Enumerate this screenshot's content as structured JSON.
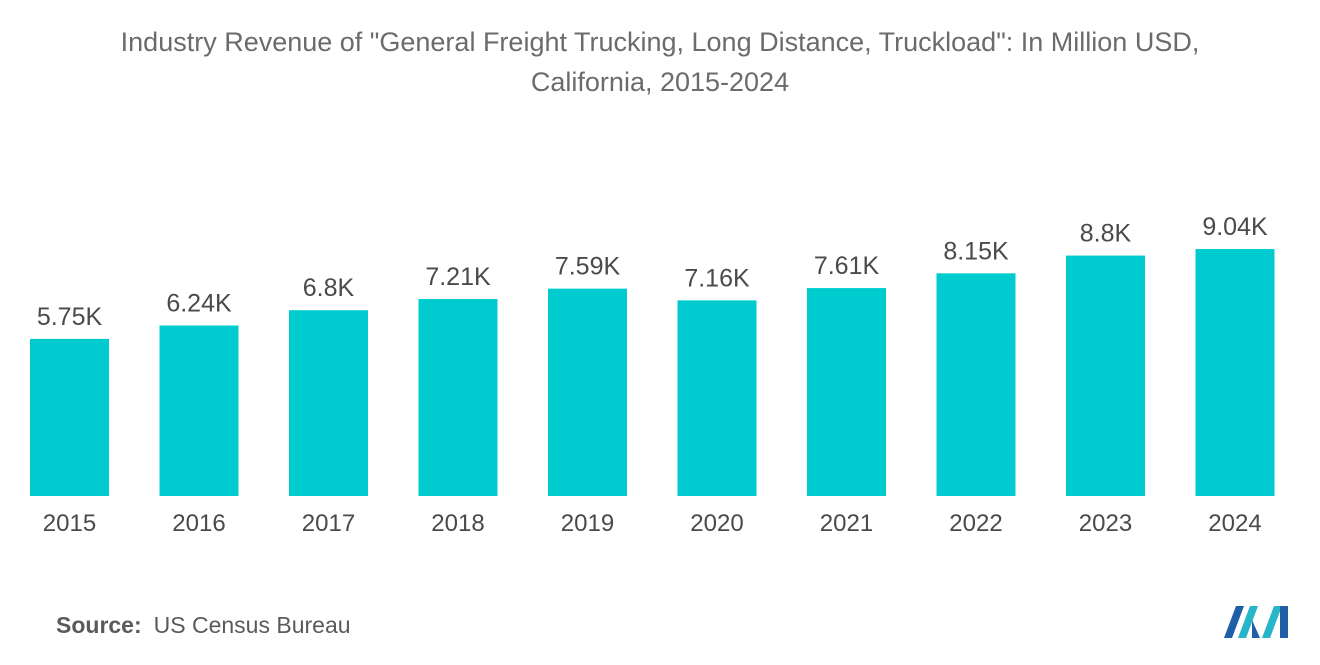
{
  "title_line1": "Industry Revenue of \"General Freight Trucking, Long Distance, Truckload\": In Million USD,",
  "title_line2": "California, 2015-2024",
  "source_label": "Source:",
  "source_value": "US Census Bureau",
  "bar_color": "#00cccf",
  "logo_icon": "mordor-intelligence-logo-icon",
  "chart_data": {
    "type": "bar",
    "title": "Industry Revenue of \"General Freight Trucking, Long Distance, Truckload\": In Million USD, California, 2015-2024",
    "categories": [
      "2015",
      "2016",
      "2017",
      "2018",
      "2019",
      "2020",
      "2021",
      "2022",
      "2023",
      "2024"
    ],
    "values": [
      5750,
      6240,
      6800,
      7210,
      7590,
      7160,
      7610,
      8150,
      8800,
      9040
    ],
    "data_labels": [
      "5.75K",
      "6.24K",
      "6.8K",
      "7.21K",
      "7.59K",
      "7.16K",
      "7.61K",
      "8.15K",
      "8.8K",
      "9.04K"
    ],
    "xlabel": "",
    "ylabel": "",
    "ylim": [
      0,
      9040
    ],
    "grid": false,
    "legend": "none"
  }
}
